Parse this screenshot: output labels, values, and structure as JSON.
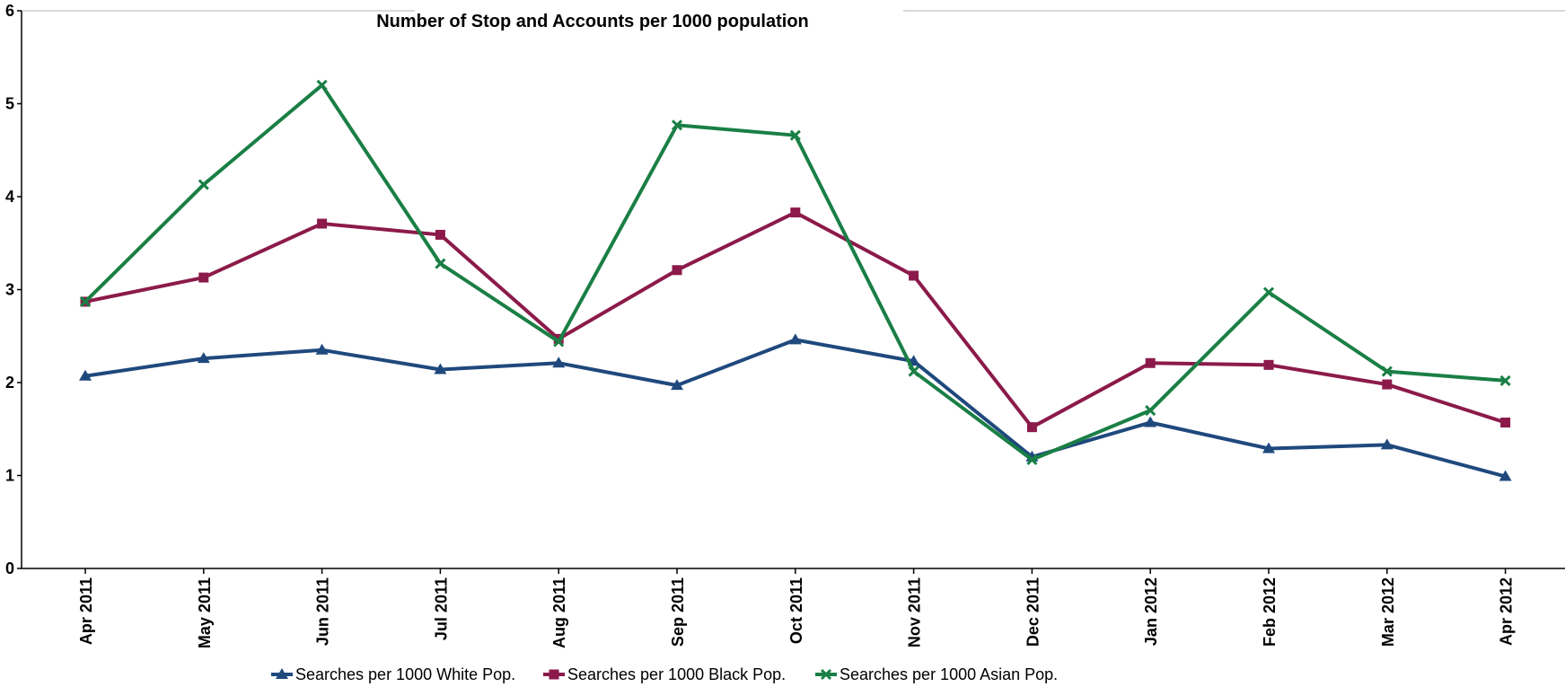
{
  "chart_data": {
    "type": "line",
    "title": "Number of Stop and Accounts per 1000 population",
    "xlabel": "",
    "ylabel": "",
    "ylim": [
      0,
      6
    ],
    "yticks": [
      "0",
      "1",
      "2",
      "3",
      "4",
      "5",
      "6"
    ],
    "grid": false,
    "legend_position": "bottom",
    "categories": [
      "Apr 2011",
      "May 2011",
      "Jun 2011",
      "Jul 2011",
      "Aug 2011",
      "Sep 2011",
      "Oct 2011",
      "Nov 2011",
      "Dec 2011",
      "Jan 2012",
      "Feb 2012",
      "Mar 2012",
      "Apr 2012"
    ],
    "series": [
      {
        "name": "Searches per 1000 White Pop.",
        "color": "#1f497d",
        "marker": "triangle",
        "values": [
          2.07,
          2.26,
          2.35,
          2.14,
          2.21,
          1.97,
          2.46,
          2.23,
          1.2,
          1.57,
          1.29,
          1.33,
          0.99
        ]
      },
      {
        "name": "Searches per 1000  Black Pop.",
        "color": "#8b1a4a",
        "marker": "square",
        "values": [
          2.87,
          3.13,
          3.71,
          3.59,
          2.47,
          3.21,
          3.83,
          3.15,
          1.52,
          2.21,
          2.19,
          1.98,
          1.57
        ]
      },
      {
        "name": "Searches per 1000 Asian Pop.",
        "color": "#1a7f45",
        "marker": "x",
        "values": [
          2.87,
          4.13,
          5.2,
          3.28,
          2.44,
          4.77,
          4.66,
          2.12,
          1.17,
          1.7,
          2.97,
          2.12,
          2.02
        ]
      }
    ]
  }
}
